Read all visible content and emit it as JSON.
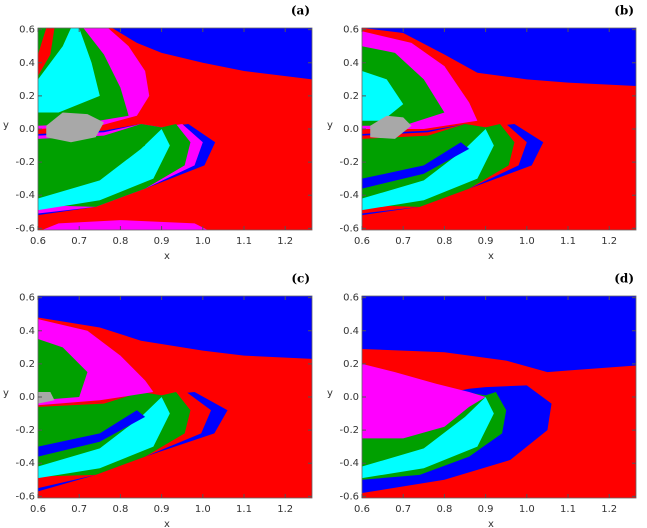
{
  "chart_data": [
    {
      "type": "basin",
      "title": "(a)",
      "xlabel": "x",
      "ylabel": "y",
      "xlim": [
        0.6,
        1.265
      ],
      "ylim": [
        -0.61,
        0.61
      ],
      "xticks": [
        0.6,
        0.7,
        0.8,
        0.9,
        {
          "value": 1,
          "label": "1.0"
        },
        1.1,
        1.2
      ],
      "yticks": [
        -0.6,
        -0.4,
        -0.2,
        {
          "value": 0,
          "label": "0.0"
        },
        0.2,
        0.4,
        0.6
      ]
    },
    {
      "type": "basin",
      "title": "(b)",
      "xlabel": "x",
      "ylabel": "y",
      "xlim": [
        0.6,
        1.265
      ],
      "ylim": [
        -0.61,
        0.61
      ],
      "xticks": [
        0.6,
        0.7,
        0.8,
        0.9,
        {
          "value": 1,
          "label": "1.0"
        },
        1.1,
        1.2
      ],
      "yticks": [
        -0.6,
        -0.4,
        -0.2,
        {
          "value": 0,
          "label": "0.0"
        },
        0.2,
        0.4,
        0.6
      ]
    },
    {
      "type": "basin",
      "title": "(c)",
      "xlabel": "x",
      "ylabel": "y",
      "xlim": [
        0.6,
        1.265
      ],
      "ylim": [
        -0.61,
        0.61
      ],
      "xticks": [
        0.6,
        0.7,
        0.8,
        0.9,
        {
          "value": 1,
          "label": "1.0"
        },
        1.1,
        1.2
      ],
      "yticks": [
        -0.6,
        -0.4,
        -0.2,
        {
          "value": 0,
          "label": "0.0"
        },
        0.2,
        0.4,
        0.6
      ]
    },
    {
      "type": "basin",
      "title": "(d)",
      "xlabel": "x",
      "ylabel": "y",
      "xlim": [
        0.6,
        1.265
      ],
      "ylim": [
        -0.61,
        0.61
      ],
      "xticks": [
        0.6,
        0.7,
        0.8,
        0.9,
        {
          "value": 1,
          "label": "1.0"
        },
        1.1,
        1.2
      ],
      "yticks": [
        -0.6,
        -0.4,
        -0.2,
        {
          "value": 0,
          "label": "0.0"
        },
        0.2,
        0.4,
        0.6
      ]
    }
  ]
}
